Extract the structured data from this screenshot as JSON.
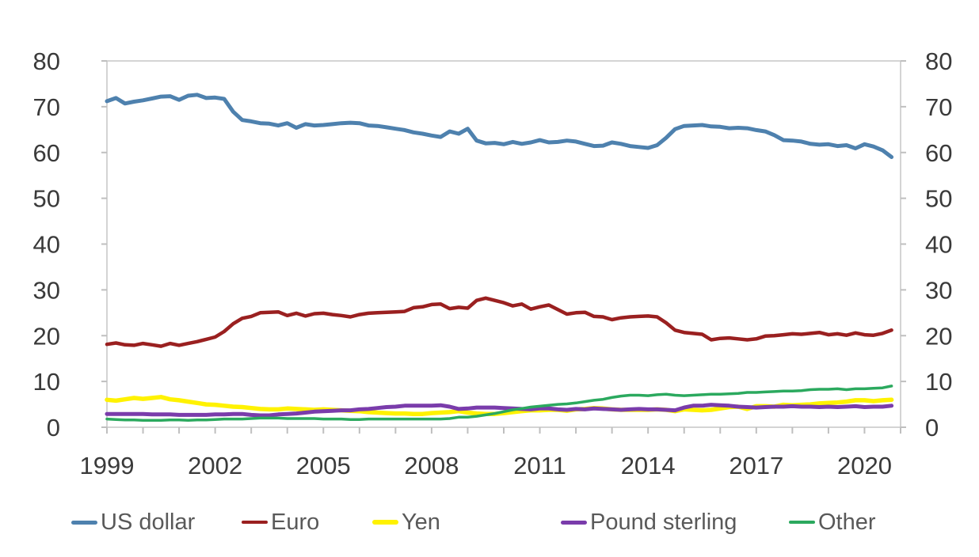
{
  "chart_data": {
    "type": "line",
    "title": "",
    "xlabel": "",
    "ylabel": "",
    "x_unit": "quarterly",
    "x_start": 1999,
    "x_step": 0.25,
    "xlim": [
      1999,
      2021
    ],
    "ylim": [
      0,
      80
    ],
    "y_ticks": [
      0,
      10,
      20,
      30,
      40,
      50,
      60,
      70,
      80
    ],
    "x_ticks": [
      1999,
      2002,
      2005,
      2008,
      2011,
      2014,
      2017,
      2020
    ],
    "x_minor_tick_step": 1,
    "grid": false,
    "dual_y_axis": true,
    "legend_position": "bottom",
    "axis_color": "#c6c6c6",
    "tick_color": "#bfbfbf",
    "tick_label_color": "#3a3a3a",
    "legend_text_color": "#595959",
    "series": [
      {
        "name": "US dollar",
        "color": "#4E81AE",
        "width": 5,
        "values": [
          71.2,
          71.9,
          70.7,
          71.1,
          71.4,
          71.8,
          72.2,
          72.3,
          71.5,
          72.4,
          72.6,
          71.9,
          72.0,
          71.7,
          68.9,
          67.1,
          66.8,
          66.4,
          66.3,
          65.9,
          66.4,
          65.4,
          66.2,
          65.9,
          66.0,
          66.2,
          66.4,
          66.5,
          66.4,
          65.9,
          65.8,
          65.5,
          65.2,
          64.9,
          64.4,
          64.1,
          63.7,
          63.4,
          64.6,
          64.1,
          65.2,
          62.6,
          62.0,
          62.1,
          61.8,
          62.3,
          61.9,
          62.2,
          62.7,
          62.2,
          62.3,
          62.6,
          62.4,
          61.9,
          61.4,
          61.5,
          62.2,
          61.9,
          61.4,
          61.2,
          61.0,
          61.6,
          63.2,
          65.1,
          65.8,
          65.9,
          66.0,
          65.7,
          65.6,
          65.3,
          65.4,
          65.3,
          64.9,
          64.6,
          63.8,
          62.7,
          62.6,
          62.4,
          61.9,
          61.7,
          61.8,
          61.4,
          61.6,
          60.9,
          61.8,
          61.3,
          60.5,
          59.0
        ]
      },
      {
        "name": "Euro",
        "color": "#9A2020",
        "width": 4.5,
        "values": [
          18.1,
          18.4,
          18.0,
          17.9,
          18.3,
          18.0,
          17.7,
          18.3,
          17.9,
          18.3,
          18.7,
          19.2,
          19.7,
          20.9,
          22.6,
          23.8,
          24.2,
          25.0,
          25.1,
          25.2,
          24.4,
          24.9,
          24.3,
          24.8,
          24.9,
          24.6,
          24.4,
          24.1,
          24.6,
          24.9,
          25.0,
          25.1,
          25.2,
          25.3,
          26.1,
          26.3,
          26.8,
          26.9,
          25.9,
          26.2,
          26.0,
          27.7,
          28.2,
          27.7,
          27.2,
          26.5,
          26.9,
          25.8,
          26.3,
          26.7,
          25.7,
          24.7,
          25.0,
          25.1,
          24.2,
          24.1,
          23.5,
          23.9,
          24.1,
          24.2,
          24.3,
          24.1,
          22.8,
          21.2,
          20.7,
          20.5,
          20.3,
          19.1,
          19.4,
          19.5,
          19.3,
          19.1,
          19.3,
          19.9,
          20.0,
          20.2,
          20.4,
          20.3,
          20.5,
          20.7,
          20.2,
          20.4,
          20.1,
          20.6,
          20.2,
          20.1,
          20.5,
          21.2
        ]
      },
      {
        "name": "Yen",
        "color": "#FFF200",
        "width": 5.5,
        "values": [
          6.0,
          5.8,
          6.1,
          6.4,
          6.2,
          6.4,
          6.6,
          6.1,
          5.9,
          5.6,
          5.3,
          5.0,
          4.9,
          4.7,
          4.5,
          4.4,
          4.2,
          4.0,
          3.9,
          3.9,
          4.1,
          4.0,
          3.9,
          3.8,
          3.9,
          3.8,
          3.7,
          3.6,
          3.5,
          3.3,
          3.2,
          3.1,
          3.0,
          3.0,
          2.9,
          2.9,
          3.1,
          3.2,
          3.3,
          3.5,
          3.2,
          3.0,
          2.9,
          2.9,
          3.1,
          3.3,
          3.5,
          3.7,
          3.7,
          3.8,
          3.8,
          3.6,
          3.9,
          4.0,
          4.2,
          4.1,
          3.9,
          3.8,
          3.8,
          3.8,
          3.8,
          3.9,
          3.8,
          3.5,
          3.9,
          3.8,
          3.7,
          3.8,
          4.1,
          4.4,
          4.5,
          4.0,
          4.6,
          4.6,
          4.5,
          4.9,
          4.8,
          4.9,
          5.0,
          5.2,
          5.3,
          5.4,
          5.6,
          5.9,
          5.9,
          5.7,
          5.9,
          6.0
        ]
      },
      {
        "name": "Pound sterling",
        "color": "#7A3CAB",
        "width": 5,
        "values": [
          2.9,
          2.9,
          2.9,
          2.9,
          2.9,
          2.8,
          2.8,
          2.8,
          2.7,
          2.7,
          2.7,
          2.7,
          2.8,
          2.8,
          2.9,
          2.9,
          2.7,
          2.6,
          2.6,
          2.8,
          2.9,
          3.0,
          3.2,
          3.4,
          3.5,
          3.6,
          3.7,
          3.7,
          3.9,
          4.0,
          4.2,
          4.4,
          4.5,
          4.7,
          4.7,
          4.7,
          4.7,
          4.8,
          4.5,
          4.0,
          4.1,
          4.3,
          4.3,
          4.3,
          4.2,
          4.1,
          4.0,
          3.9,
          4.1,
          4.1,
          3.9,
          3.8,
          4.0,
          3.9,
          4.1,
          4.0,
          3.9,
          3.8,
          3.9,
          4.0,
          3.9,
          3.9,
          3.8,
          3.7,
          4.3,
          4.7,
          4.7,
          4.9,
          4.8,
          4.7,
          4.5,
          4.4,
          4.3,
          4.4,
          4.5,
          4.5,
          4.6,
          4.5,
          4.5,
          4.4,
          4.5,
          4.4,
          4.5,
          4.6,
          4.4,
          4.5,
          4.5,
          4.7
        ]
      },
      {
        "name": "Other",
        "color": "#2BA95E",
        "width": 3.5,
        "values": [
          1.8,
          1.7,
          1.6,
          1.6,
          1.5,
          1.5,
          1.5,
          1.6,
          1.6,
          1.5,
          1.6,
          1.6,
          1.7,
          1.8,
          1.8,
          1.8,
          1.9,
          2.0,
          2.0,
          2.0,
          1.9,
          1.9,
          1.9,
          1.9,
          1.8,
          1.8,
          1.8,
          1.7,
          1.7,
          1.8,
          1.8,
          1.8,
          1.8,
          1.8,
          1.8,
          1.8,
          1.8,
          1.8,
          1.9,
          2.2,
          2.2,
          2.4,
          2.7,
          3.0,
          3.4,
          3.8,
          4.1,
          4.4,
          4.6,
          4.8,
          5.0,
          5.1,
          5.3,
          5.6,
          5.9,
          6.1,
          6.5,
          6.8,
          7.0,
          7.0,
          6.9,
          7.1,
          7.2,
          7.0,
          6.9,
          7.0,
          7.1,
          7.2,
          7.2,
          7.3,
          7.4,
          7.6,
          7.6,
          7.7,
          7.8,
          7.9,
          7.9,
          8.0,
          8.2,
          8.3,
          8.3,
          8.4,
          8.2,
          8.4,
          8.4,
          8.5,
          8.6,
          9.0
        ]
      }
    ]
  }
}
